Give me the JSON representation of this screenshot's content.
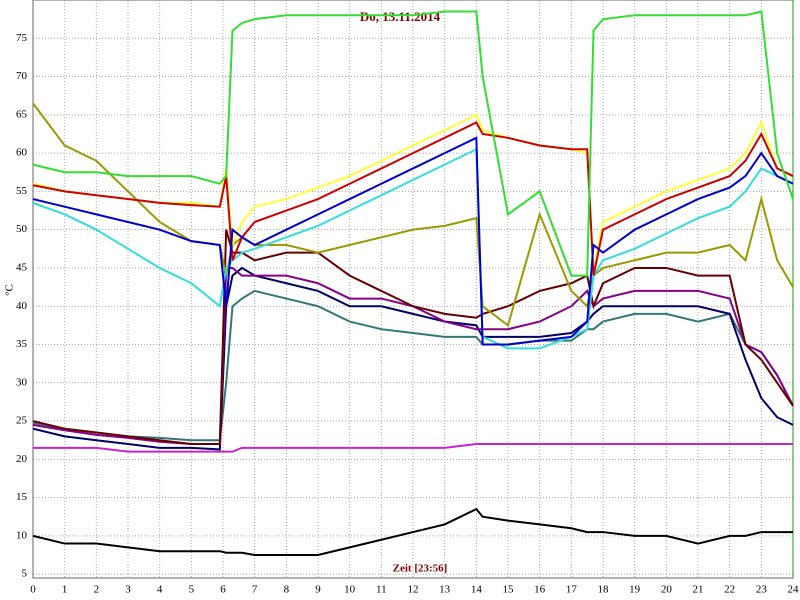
{
  "chart_data": {
    "type": "line",
    "title": "Do, 13.11.2014",
    "x_label": "Zeit [23:56]",
    "y_label": "°C",
    "x": [
      0,
      1,
      2,
      3,
      4,
      5,
      5.9,
      6.1,
      6.3,
      6.6,
      7,
      8,
      9,
      10,
      11,
      12,
      13,
      14,
      14.2,
      15,
      16,
      17,
      17.5,
      17.7,
      18,
      19,
      20,
      21,
      22,
      22.5,
      23,
      23.5,
      24
    ],
    "xlim": [
      0,
      24
    ],
    "xticks": [
      0,
      1,
      2,
      3,
      4,
      5,
      6,
      7,
      8,
      9,
      10,
      11,
      12,
      13,
      14,
      15,
      16,
      17,
      18,
      19,
      20,
      21,
      22,
      23,
      24
    ],
    "ylim": [
      4.5,
      80
    ],
    "yticks": [
      5,
      10,
      15,
      20,
      25,
      30,
      35,
      40,
      45,
      50,
      55,
      60,
      65,
      70,
      75
    ],
    "grid": true,
    "series": [
      {
        "color": "#000000",
        "values": [
          10,
          9,
          9,
          8.5,
          8,
          8,
          8,
          7.8,
          7.8,
          7.8,
          7.5,
          7.5,
          7.5,
          8.5,
          9.5,
          10.5,
          11.5,
          13.5,
          12.5,
          12,
          11.5,
          11,
          10.5,
          10.5,
          10.5,
          10,
          10,
          9,
          10,
          10,
          10.5,
          10.5,
          10.5
        ]
      },
      {
        "color": "#cc22cc",
        "values": [
          21.5,
          21.5,
          21.5,
          21,
          21,
          21,
          21,
          21,
          21,
          21.5,
          21.5,
          21.5,
          21.5,
          21.5,
          21.5,
          21.5,
          21.5,
          22,
          22,
          22,
          22,
          22,
          22,
          22,
          22,
          22,
          22,
          22,
          22,
          22,
          22,
          22,
          22
        ]
      },
      {
        "color": "#337777",
        "values": [
          24.8,
          24,
          23.5,
          23,
          22.8,
          22.5,
          22.5,
          30,
          40,
          41,
          42,
          41,
          40,
          38,
          37,
          36.5,
          36,
          36,
          35,
          35,
          35.5,
          35.5,
          37,
          37,
          38,
          39,
          39,
          38,
          39,
          35,
          34,
          31,
          27
        ]
      },
      {
        "color": "#000066",
        "values": [
          24,
          23,
          22.5,
          22,
          21.5,
          21.5,
          21.3,
          40,
          44,
          45,
          44,
          43,
          42,
          40,
          40,
          39,
          38,
          37.5,
          36,
          36,
          36,
          36.5,
          38,
          39,
          40,
          40,
          40,
          40,
          39,
          33,
          28,
          25.5,
          24.5
        ]
      },
      {
        "color": "#880088",
        "values": [
          24.5,
          23.8,
          23.2,
          22.8,
          22.3,
          22,
          22,
          45,
          45,
          44,
          44,
          44,
          43,
          41,
          41,
          40,
          38,
          37,
          37,
          37,
          38,
          40,
          42,
          40,
          41,
          42,
          42,
          42,
          41,
          35,
          34,
          31,
          27
        ]
      },
      {
        "color": "#660000",
        "values": [
          25,
          24,
          23.5,
          23,
          22.5,
          22,
          22,
          50,
          47,
          47,
          46,
          47,
          47,
          44,
          42,
          40,
          39,
          38.5,
          39,
          40,
          42,
          43,
          44,
          40,
          43,
          45,
          45,
          44,
          44,
          35,
          33,
          30,
          27
        ]
      },
      {
        "color": "#999900",
        "values": [
          66.5,
          61,
          59,
          55,
          51,
          48.5,
          48,
          44,
          48,
          49,
          48,
          48,
          47,
          48,
          49,
          50,
          50.5,
          51.5,
          40,
          37.5,
          52,
          42,
          40,
          44,
          45,
          46,
          47,
          47,
          48,
          46,
          54,
          46,
          42.5
        ]
      },
      {
        "color": "#33dddd",
        "values": [
          53.5,
          52,
          50,
          47.5,
          45,
          43,
          40,
          45,
          46,
          47,
          47.5,
          49,
          50.5,
          52.5,
          54.5,
          56.5,
          58.5,
          60.5,
          36,
          34.5,
          34.5,
          36,
          37,
          44,
          46,
          47.5,
          49.5,
          51.5,
          53,
          55,
          58,
          57,
          56
        ]
      },
      {
        "color": "#ffff33",
        "values": [
          56,
          55,
          54.5,
          54,
          53.5,
          53.5,
          53,
          58,
          48,
          51,
          53,
          54,
          55.5,
          57,
          59,
          61,
          63,
          65,
          63,
          62,
          61,
          60.5,
          60,
          45,
          51,
          53,
          55,
          56.5,
          58,
          60,
          64,
          58,
          57
        ]
      },
      {
        "color": "#cc0000",
        "values": [
          55.8,
          55,
          54.5,
          54,
          53.5,
          53.2,
          53,
          57,
          46,
          49,
          51,
          52.5,
          54,
          56,
          58,
          60,
          62,
          64,
          62.5,
          62,
          61,
          60.5,
          60.5,
          44,
          50,
          52,
          54,
          55.5,
          57,
          59,
          62.5,
          58,
          57
        ]
      },
      {
        "color": "#0000cc",
        "values": [
          54,
          53,
          52,
          51,
          50,
          48.5,
          48,
          40,
          50,
          49,
          48,
          50,
          52,
          54,
          56,
          58,
          60,
          62,
          35,
          35,
          35.5,
          36,
          38,
          48,
          47,
          50,
          52,
          54,
          55.5,
          57,
          60,
          57,
          56
        ]
      },
      {
        "color": "#33dd33",
        "values": [
          58.5,
          57.5,
          57.5,
          57,
          57,
          57,
          56,
          57,
          76,
          77,
          77.5,
          78,
          78,
          78,
          78,
          78,
          78.5,
          78.5,
          70,
          52,
          55,
          44,
          44,
          76,
          77.5,
          78,
          78,
          78,
          78,
          78,
          78.5,
          60,
          54
        ]
      }
    ]
  }
}
